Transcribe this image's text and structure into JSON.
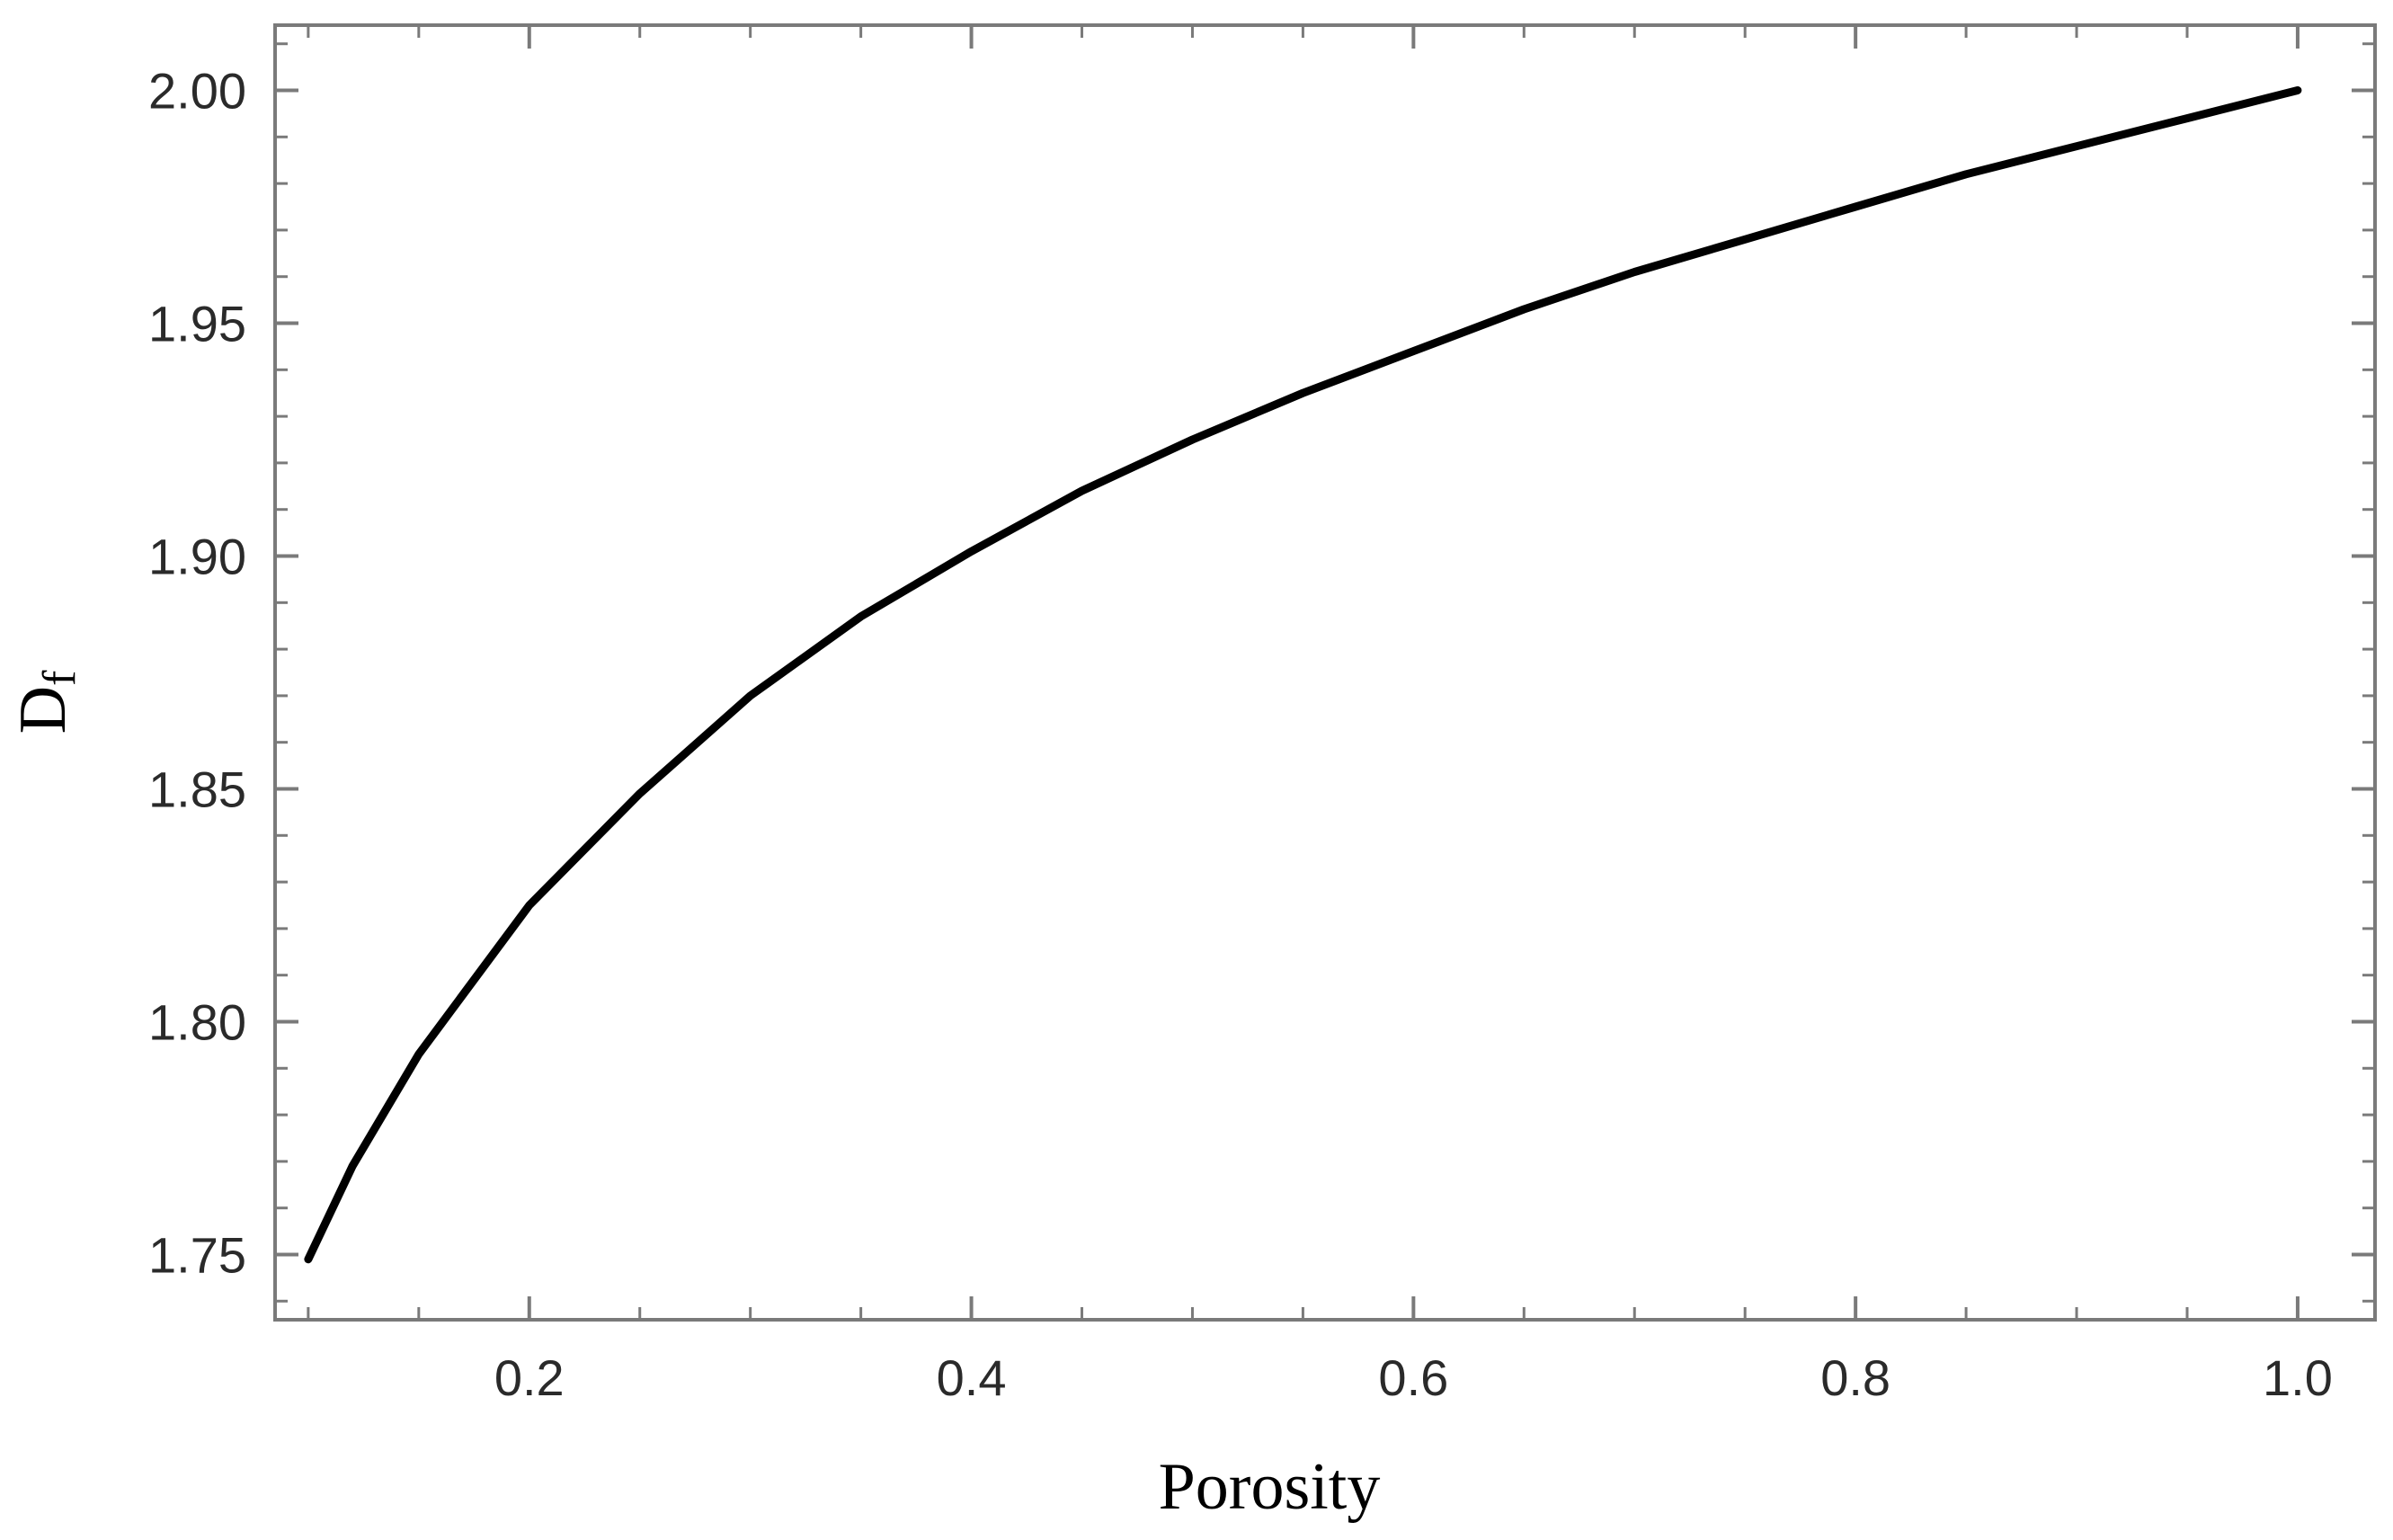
{
  "chart_data": {
    "type": "line",
    "title": "",
    "xlabel": "Porosity",
    "ylabel": {
      "main": "D",
      "sub": "f"
    },
    "xlim": [
      0.085,
      1.035
    ],
    "ylim": [
      1.736,
      2.014
    ],
    "x_ticks": [
      {
        "value": 0.2,
        "label": "0.2"
      },
      {
        "value": 0.4,
        "label": "0.4"
      },
      {
        "value": 0.6,
        "label": "0.6"
      },
      {
        "value": 0.8,
        "label": "0.8"
      },
      {
        "value": 1.0,
        "label": "1.0"
      }
    ],
    "y_ticks": [
      {
        "value": 1.75,
        "label": "1.75"
      },
      {
        "value": 1.8,
        "label": "1.80"
      },
      {
        "value": 1.85,
        "label": "1.85"
      },
      {
        "value": 1.9,
        "label": "1.90"
      },
      {
        "value": 1.95,
        "label": "1.95"
      },
      {
        "value": 2.0,
        "label": "2.00"
      }
    ],
    "grid": false,
    "series": [
      {
        "color": "#000000",
        "x": [
          0.1,
          0.12,
          0.15,
          0.2,
          0.25,
          0.3,
          0.35,
          0.4,
          0.45,
          0.5,
          0.55,
          0.6,
          0.65,
          0.7,
          0.75,
          0.8,
          0.85,
          0.9,
          0.95,
          1.0
        ],
        "y": [
          1.749,
          1.769,
          1.793,
          1.825,
          1.849,
          1.87,
          1.887,
          1.901,
          1.914,
          1.925,
          1.935,
          1.944,
          1.953,
          1.961,
          1.968,
          1.975,
          1.982,
          1.988,
          1.994,
          2.0
        ]
      }
    ]
  }
}
